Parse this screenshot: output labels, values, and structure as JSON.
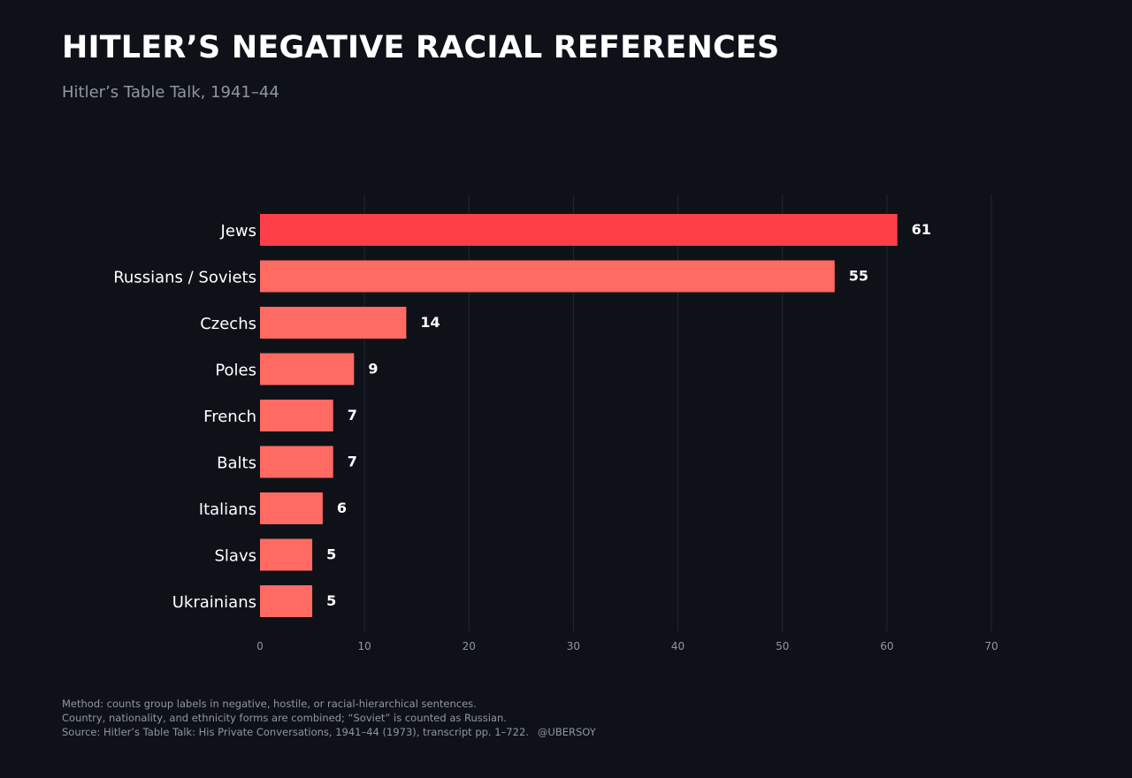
{
  "header": {
    "title": "HITLER’S NEGATIVE RACIAL REFERENCES",
    "subtitle": "Hitler’s Table Talk, 1941–44"
  },
  "footer": {
    "method": "Method: counts group labels in negative, hostile, or racial-hierarchical sentences.",
    "note": "Country, nationality, and ethnicity forms are combined; “Soviet” is counted as Russian.",
    "source": "Source: Hitler’s Table Talk: His Private Conversations, 1941–44 (1973), transcript pp. 1–722.",
    "handle": "@UBERSOY"
  },
  "colors": {
    "background": "#0f1119",
    "bar": "#ff6a62",
    "bar_highlight": "#ff3f48",
    "grid": "#232733",
    "tick_text": "#8f96a3",
    "label_text": "#ffffff"
  },
  "chart_data": {
    "type": "bar",
    "orientation": "horizontal",
    "title": "HITLER’S NEGATIVE RACIAL REFERENCES",
    "subtitle": "Hitler’s Table Talk, 1941–44",
    "categories": [
      "Jews",
      "Russians / Soviets",
      "Czechs",
      "Poles",
      "French",
      "Balts",
      "Italians",
      "Slavs",
      "Ukrainians"
    ],
    "values": [
      61,
      55,
      14,
      9,
      7,
      7,
      6,
      5,
      5
    ],
    "highlight_index": 0,
    "xlim": [
      0,
      70
    ],
    "xticks": [
      0,
      10,
      20,
      30,
      40,
      50,
      60,
      70
    ],
    "xlabel": "",
    "ylabel": "",
    "grid": "vertical",
    "legend": "none"
  }
}
